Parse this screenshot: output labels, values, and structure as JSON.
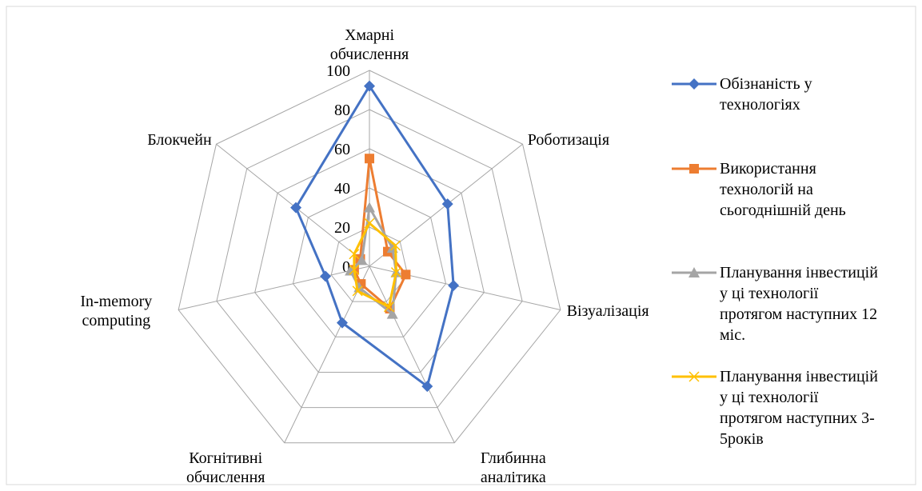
{
  "chart_data": {
    "type": "radar",
    "categories": [
      "Хмарні обчислення",
      "Роботизація",
      "Візуалізація",
      "Глибинна аналітика",
      "Когнітивні обчислення",
      "In-memory computing",
      "Блокчейн"
    ],
    "series": [
      {
        "name": "Обізнаність у технологіях",
        "color": "#4472c4",
        "marker": "diamond",
        "values": [
          92,
          51,
          44,
          68,
          32,
          23,
          48
        ]
      },
      {
        "name": "Використання технологій на сьогоднішній день",
        "color": "#ed7d31",
        "marker": "square",
        "values": [
          55,
          12,
          19,
          24,
          10,
          8,
          6
        ]
      },
      {
        "name": "Планування інвестицій у ці технології протягом наступних 12 міс.",
        "color": "#a5a5a5",
        "marker": "triangle",
        "values": [
          30,
          15,
          14,
          27,
          12,
          10,
          5
        ]
      },
      {
        "name": "Планування інвестицій у ці технології протягом наступних 3-5років",
        "color": "#ffc000",
        "marker": "x",
        "values": [
          22,
          17,
          14,
          23,
          14,
          8,
          10
        ]
      }
    ],
    "ylim": [
      0,
      100
    ],
    "yticks": [
      0,
      20,
      40,
      60,
      80,
      100
    ],
    "grid": true
  }
}
